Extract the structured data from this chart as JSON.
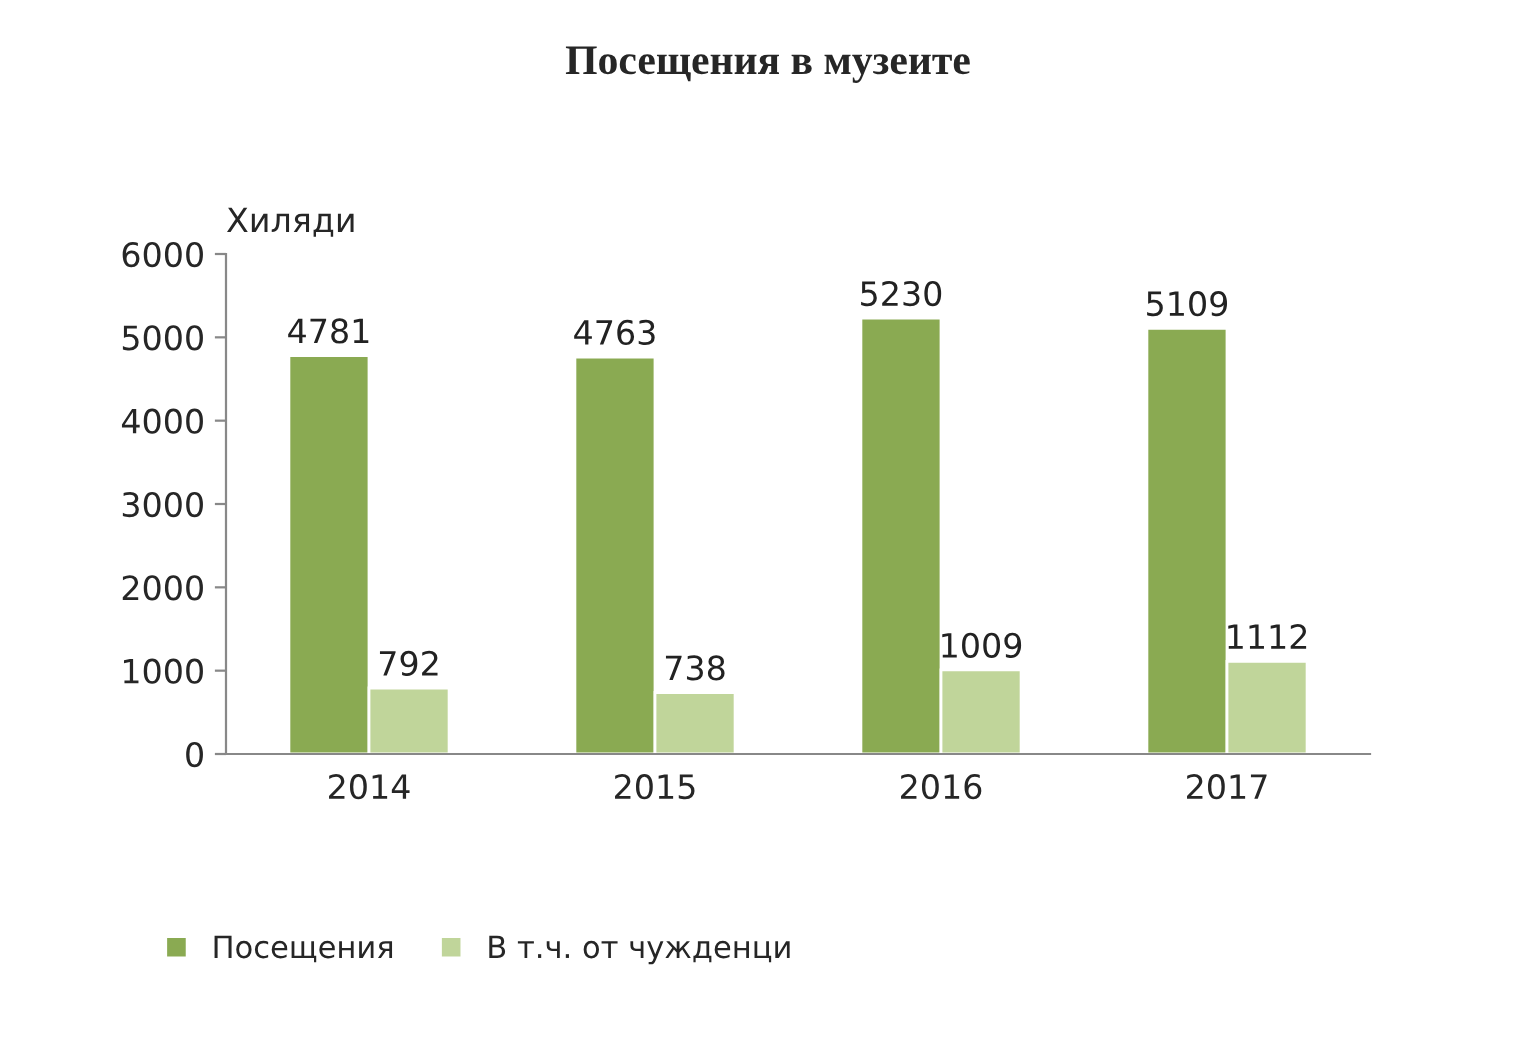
{
  "chart_data": {
    "type": "bar",
    "title": "Посещения в музеите",
    "ylabel": "Хиляди",
    "categories": [
      "2014",
      "2015",
      "2016",
      "2017"
    ],
    "series": [
      {
        "name": "Посещения",
        "color": "#8aaa52",
        "values": [
          4781,
          4763,
          5230,
          5109
        ]
      },
      {
        "name": "В т.ч. от чужденци",
        "color": "#c0d59a",
        "values": [
          792,
          738,
          1009,
          1112
        ]
      }
    ],
    "ylim": [
      0,
      6000
    ],
    "yticks": [
      0,
      1000,
      2000,
      3000,
      4000,
      5000,
      6000
    ],
    "grid": false,
    "legend": "bottom",
    "data_labels": true
  }
}
